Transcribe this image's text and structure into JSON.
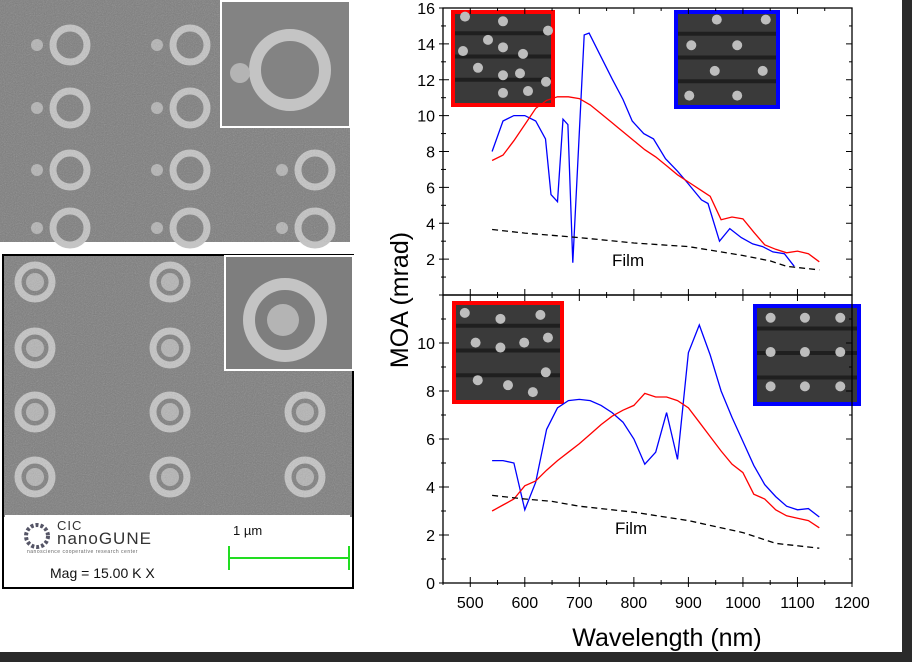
{
  "sem": {
    "logo_top": "CIC",
    "logo_name": "nanoGUNE",
    "logo_sub": "nanoscience cooperative research center",
    "scale_bar_label": "1 µm",
    "magnification": "Mag =  15.00 K X",
    "scale_color": "#22dd22"
  },
  "chart_data": [
    {
      "type": "line",
      "xlim": [
        450,
        1200
      ],
      "ylim": [
        0,
        16
      ],
      "x_ticks": [
        500,
        600,
        700,
        800,
        900,
        1000,
        1100,
        1200
      ],
      "y_ticks": [
        2,
        4,
        6,
        8,
        10,
        12,
        14,
        16
      ],
      "ylabel": "MOA (mrad)",
      "annotation": "Film",
      "series": [
        {
          "color": "#0000ff",
          "style": "solid",
          "x": [
            540,
            560,
            580,
            600,
            620,
            638,
            648,
            660,
            670,
            679,
            688,
            709,
            718,
            736,
            761,
            780,
            797,
            818,
            836,
            858,
            880,
            897,
            924,
            936,
            957,
            976,
            997,
            1018,
            1036,
            1055,
            1076,
            1094
          ],
          "y": [
            8.0,
            9.7,
            10.0,
            10.0,
            9.7,
            8.7,
            5.6,
            5.2,
            9.8,
            9.5,
            1.8,
            14.5,
            14.6,
            13.5,
            12.0,
            10.9,
            9.7,
            9.0,
            8.7,
            7.6,
            6.9,
            6.3,
            5.3,
            5.1,
            3.0,
            3.7,
            3.2,
            2.85,
            2.7,
            2.4,
            2.3,
            1.6
          ]
        },
        {
          "color": "#ff0000",
          "style": "solid",
          "x": [
            540,
            560,
            580,
            600,
            620,
            640,
            660,
            680,
            700,
            720,
            740,
            760,
            780,
            800,
            820,
            840,
            860,
            880,
            900,
            920,
            940,
            960,
            980,
            1000,
            1020,
            1040,
            1060,
            1080,
            1100,
            1120,
            1140
          ],
          "y": [
            7.5,
            7.8,
            8.6,
            9.5,
            10.4,
            10.85,
            11.05,
            11.05,
            10.95,
            10.6,
            10.1,
            9.6,
            9.1,
            8.6,
            8.1,
            7.7,
            7.2,
            6.7,
            6.3,
            5.9,
            5.5,
            4.2,
            4.35,
            4.25,
            3.5,
            2.8,
            2.55,
            2.35,
            2.45,
            2.3,
            1.85
          ]
        },
        {
          "color": "#000000",
          "style": "dashed",
          "x": [
            540,
            600,
            700,
            800,
            900,
            1000,
            1050,
            1080,
            1140
          ],
          "y": [
            3.65,
            3.45,
            3.2,
            2.9,
            2.7,
            2.2,
            1.9,
            1.6,
            1.4
          ]
        }
      ]
    },
    {
      "type": "line",
      "xlim": [
        450,
        1200
      ],
      "ylim": [
        0,
        12
      ],
      "x_ticks": [
        500,
        600,
        700,
        800,
        900,
        1000,
        1100,
        1200
      ],
      "y_ticks": [
        0,
        2,
        4,
        6,
        8,
        10
      ],
      "xlabel": "Wavelength (nm)",
      "annotation": "Film",
      "series": [
        {
          "color": "#0000ff",
          "style": "solid",
          "x": [
            540,
            560,
            580,
            600,
            620,
            640,
            660,
            680,
            700,
            720,
            740,
            760,
            780,
            800,
            820,
            840,
            860,
            880,
            900,
            920,
            940,
            960,
            980,
            1000,
            1020,
            1040,
            1060,
            1080,
            1100,
            1120,
            1140
          ],
          "y": [
            5.1,
            5.1,
            5.0,
            3.05,
            4.2,
            6.4,
            7.3,
            7.6,
            7.65,
            7.6,
            7.4,
            7.1,
            6.7,
            6.0,
            4.95,
            5.45,
            7.1,
            5.15,
            9.6,
            10.75,
            9.5,
            8.0,
            6.9,
            5.9,
            4.9,
            4.1,
            3.6,
            3.2,
            3.05,
            3.1,
            2.75
          ]
        },
        {
          "color": "#ff0000",
          "style": "solid",
          "x": [
            540,
            560,
            580,
            600,
            620,
            640,
            660,
            680,
            700,
            720,
            740,
            760,
            780,
            800,
            820,
            840,
            860,
            880,
            900,
            920,
            940,
            960,
            980,
            1000,
            1020,
            1040,
            1060,
            1080,
            1100,
            1120,
            1140
          ],
          "y": [
            3.0,
            3.25,
            3.5,
            4.05,
            4.25,
            4.7,
            5.1,
            5.45,
            5.8,
            6.2,
            6.6,
            6.95,
            7.2,
            7.4,
            7.9,
            7.75,
            7.75,
            7.6,
            7.3,
            6.7,
            6.1,
            5.5,
            4.95,
            4.6,
            3.7,
            3.5,
            3.05,
            2.8,
            2.7,
            2.6,
            2.3
          ]
        },
        {
          "color": "#000000",
          "style": "dashed",
          "x": [
            540,
            600,
            650,
            700,
            800,
            900,
            1000,
            1060,
            1140
          ],
          "y": [
            3.65,
            3.5,
            3.4,
            3.2,
            2.95,
            2.6,
            2.1,
            1.65,
            1.45
          ]
        }
      ]
    }
  ]
}
